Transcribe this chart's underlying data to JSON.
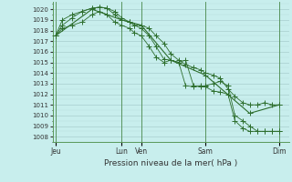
{
  "title": "Pression niveau de la mer( hPa )",
  "bg_color": "#c8eeed",
  "grid_major_color": "#a8cece",
  "grid_minor_color": "#b8dede",
  "line_color": "#2d6e2d",
  "ylim": [
    1007.5,
    1020.7
  ],
  "yticks": [
    1008,
    1009,
    1010,
    1011,
    1012,
    1013,
    1014,
    1015,
    1016,
    1017,
    1018,
    1019,
    1020
  ],
  "xlim": [
    0,
    24
  ],
  "xtick_labels": [
    "Jeu",
    "Lun",
    "Ven",
    "Sam",
    "Dim"
  ],
  "xtick_pos": [
    0.3,
    7.0,
    9.0,
    15.5,
    23.0
  ],
  "vline_positions": [
    0.3,
    7.0,
    9.0,
    15.5,
    23.0
  ],
  "series1_x": [
    0.3,
    1.0,
    2.0,
    3.0,
    4.0,
    4.8,
    5.5,
    6.3,
    7.0,
    7.8,
    8.3,
    9.0,
    9.8,
    10.5,
    11.3,
    12.0,
    12.8,
    13.5,
    14.3,
    15.0,
    15.5,
    16.3,
    17.0,
    17.8,
    18.5,
    19.3,
    20.0,
    20.8,
    21.5,
    22.3,
    23.0
  ],
  "series1_y": [
    1017.5,
    1018.5,
    1019.2,
    1019.8,
    1020.1,
    1020.2,
    1020.1,
    1019.5,
    1019.0,
    1018.8,
    1018.5,
    1018.5,
    1018.2,
    1017.5,
    1016.8,
    1015.8,
    1015.2,
    1014.8,
    1014.5,
    1014.3,
    1014.0,
    1013.8,
    1013.5,
    1012.5,
    1011.8,
    1011.2,
    1011.0,
    1011.0,
    1011.2,
    1011.0,
    1011.0
  ],
  "series2_x": [
    0.3,
    1.0,
    2.0,
    3.0,
    4.0,
    4.8,
    5.5,
    6.3,
    7.0,
    7.8,
    8.3,
    9.0,
    9.8,
    10.5,
    11.3,
    12.0,
    12.8,
    13.5,
    14.3,
    15.0,
    15.5,
    16.3,
    17.0,
    17.8,
    18.5,
    19.3,
    20.0,
    20.8,
    21.5,
    22.3,
    23.0
  ],
  "series2_y": [
    1017.5,
    1019.0,
    1019.5,
    1019.8,
    1020.1,
    1020.2,
    1020.1,
    1019.8,
    1019.2,
    1018.8,
    1018.5,
    1018.2,
    1017.5,
    1016.5,
    1015.3,
    1015.2,
    1015.0,
    1015.2,
    1012.8,
    1012.7,
    1012.8,
    1013.0,
    1013.2,
    1012.8,
    1010.0,
    1009.5,
    1009.0,
    1008.5,
    1008.5,
    1008.5,
    1008.5
  ],
  "series3_x": [
    0.3,
    1.0,
    2.0,
    3.0,
    4.0,
    4.8,
    5.5,
    6.3,
    7.0,
    7.8,
    8.3,
    9.0,
    9.8,
    10.5,
    11.3,
    12.0,
    12.8,
    13.5,
    14.3,
    15.0,
    15.5,
    16.3,
    17.0,
    17.8,
    18.5,
    19.3,
    20.0,
    20.8,
    21.5,
    22.3,
    23.0
  ],
  "series3_y": [
    1017.5,
    1018.2,
    1018.5,
    1018.8,
    1019.5,
    1019.8,
    1019.5,
    1018.8,
    1018.5,
    1018.2,
    1017.8,
    1017.5,
    1016.5,
    1015.5,
    1015.0,
    1015.2,
    1015.0,
    1012.8,
    1012.7,
    1012.8,
    1012.7,
    1012.3,
    1012.2,
    1012.0,
    1009.5,
    1008.8,
    1008.5,
    1008.5,
    1008.5,
    1008.5,
    1008.5
  ],
  "series4_x": [
    0.3,
    4.0,
    7.0,
    9.0,
    12.0,
    15.5,
    20.0,
    23.0
  ],
  "series4_y": [
    1017.5,
    1020.0,
    1019.0,
    1018.5,
    1015.2,
    1013.8,
    1010.2,
    1011.0
  ],
  "marker": "+",
  "markersize": 4,
  "linewidth_thin": 0.6,
  "linewidth_thick": 0.8
}
